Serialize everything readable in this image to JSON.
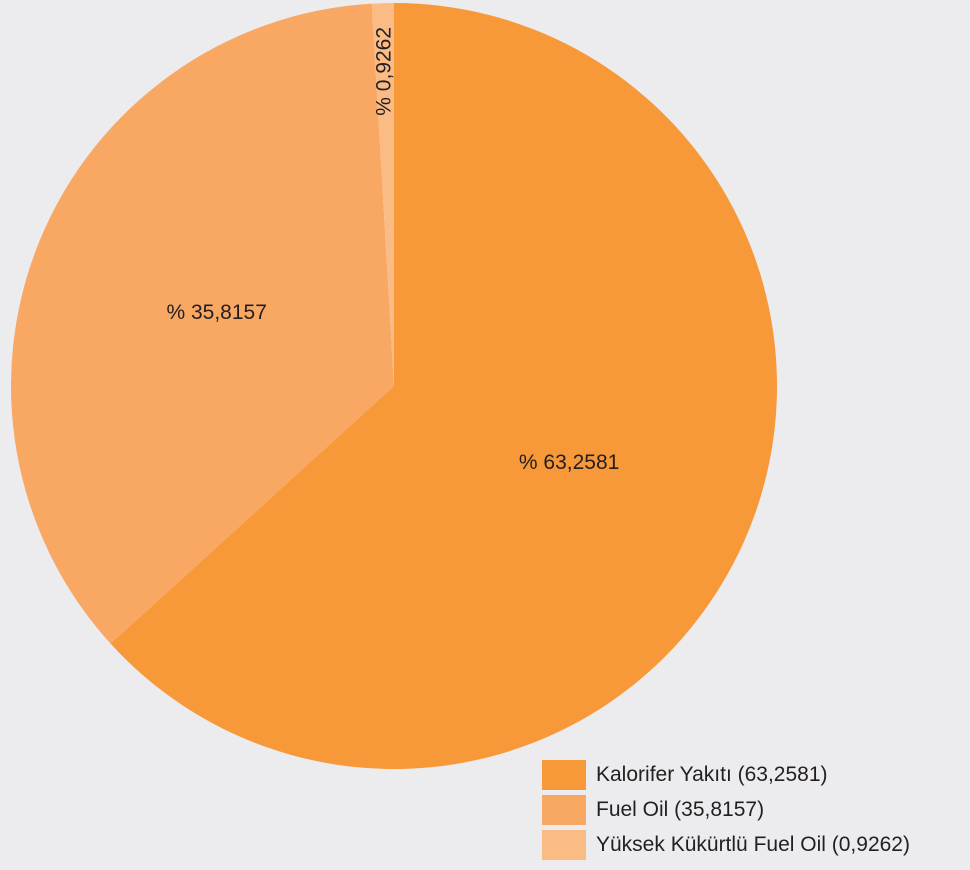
{
  "chart_data": {
    "type": "pie",
    "slices": [
      {
        "name": "Kalorifer Yakıtı",
        "value": 63.2581,
        "label": "% 63,2581",
        "legend": "Kalorifer Yakıtı (63,2581)",
        "color": "#f79839"
      },
      {
        "name": "Fuel Oil",
        "value": 35.8157,
        "label": "% 35,8157",
        "legend": "Fuel Oil (35,8157)",
        "color": "#f8a863"
      },
      {
        "name": "Yüksek Kükürtlü Fuel Oil",
        "value": 0.9262,
        "label": "% 0,9262",
        "legend": "Yüksek Kükürtlü Fuel Oil (0,9262)",
        "color": "#fbbb85"
      }
    ],
    "start_angle": "12 o'clock",
    "direction": "clockwise",
    "legend_position": "bottom-right",
    "background": "#ecebee"
  }
}
